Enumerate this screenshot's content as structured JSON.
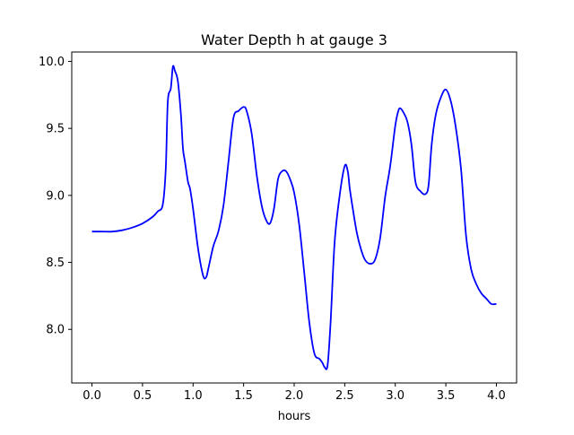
{
  "chart_data": {
    "type": "line",
    "title": "Water Depth h at gauge 3",
    "xlabel": "hours",
    "ylabel": "",
    "xlim": [
      -0.2,
      4.2
    ],
    "ylim": [
      7.6,
      10.07
    ],
    "xticks": [
      0.0,
      0.5,
      1.0,
      1.5,
      2.0,
      2.5,
      3.0,
      3.5,
      4.0
    ],
    "xtick_labels": [
      "0.0",
      "0.5",
      "1.0",
      "1.5",
      "2.0",
      "2.5",
      "3.0",
      "3.5",
      "4.0"
    ],
    "yticks": [
      8.0,
      8.5,
      9.0,
      9.5,
      10.0
    ],
    "ytick_labels": [
      "8.0",
      "8.5",
      "9.0",
      "9.5",
      "10.0"
    ],
    "grid": false,
    "series": [
      {
        "color": "#0000ff",
        "x": [
          0.0,
          0.1,
          0.2,
          0.3,
          0.4,
          0.5,
          0.6,
          0.65,
          0.7,
          0.73,
          0.75,
          0.78,
          0.8,
          0.82,
          0.85,
          0.88,
          0.9,
          0.92,
          0.95,
          0.97,
          1.0,
          1.05,
          1.1,
          1.13,
          1.15,
          1.2,
          1.25,
          1.3,
          1.35,
          1.4,
          1.45,
          1.5,
          1.53,
          1.58,
          1.63,
          1.68,
          1.72,
          1.76,
          1.8,
          1.84,
          1.88,
          1.92,
          1.96,
          2.0,
          2.05,
          2.1,
          2.15,
          2.2,
          2.25,
          2.28,
          2.3,
          2.33,
          2.36,
          2.4,
          2.45,
          2.5,
          2.53,
          2.55,
          2.58,
          2.62,
          2.66,
          2.7,
          2.75,
          2.8,
          2.85,
          2.9,
          2.95,
          3.0,
          3.03,
          3.05,
          3.08,
          3.12,
          3.16,
          3.2,
          3.25,
          3.3,
          3.33,
          3.36,
          3.4,
          3.45,
          3.5,
          3.55,
          3.6,
          3.65,
          3.7,
          3.75,
          3.8,
          3.85,
          3.9,
          3.95,
          4.0
        ],
        "y": [
          8.73,
          8.73,
          8.73,
          8.74,
          8.76,
          8.79,
          8.84,
          8.88,
          8.93,
          9.2,
          9.7,
          9.8,
          9.96,
          9.93,
          9.85,
          9.6,
          9.35,
          9.25,
          9.1,
          9.05,
          8.9,
          8.6,
          8.4,
          8.39,
          8.45,
          8.62,
          8.73,
          8.92,
          9.25,
          9.58,
          9.63,
          9.66,
          9.63,
          9.46,
          9.15,
          8.92,
          8.82,
          8.79,
          8.9,
          9.12,
          9.18,
          9.18,
          9.12,
          9.02,
          8.78,
          8.42,
          8.05,
          7.82,
          7.78,
          7.75,
          7.72,
          7.73,
          8.05,
          8.65,
          9.0,
          9.22,
          9.18,
          9.05,
          8.9,
          8.72,
          8.6,
          8.52,
          8.49,
          8.52,
          8.68,
          8.99,
          9.22,
          9.52,
          9.63,
          9.65,
          9.62,
          9.55,
          9.38,
          9.1,
          9.03,
          9.01,
          9.08,
          9.38,
          9.6,
          9.73,
          9.79,
          9.7,
          9.5,
          9.2,
          8.7,
          8.45,
          8.34,
          8.27,
          8.23,
          8.19,
          8.19
        ]
      }
    ]
  }
}
